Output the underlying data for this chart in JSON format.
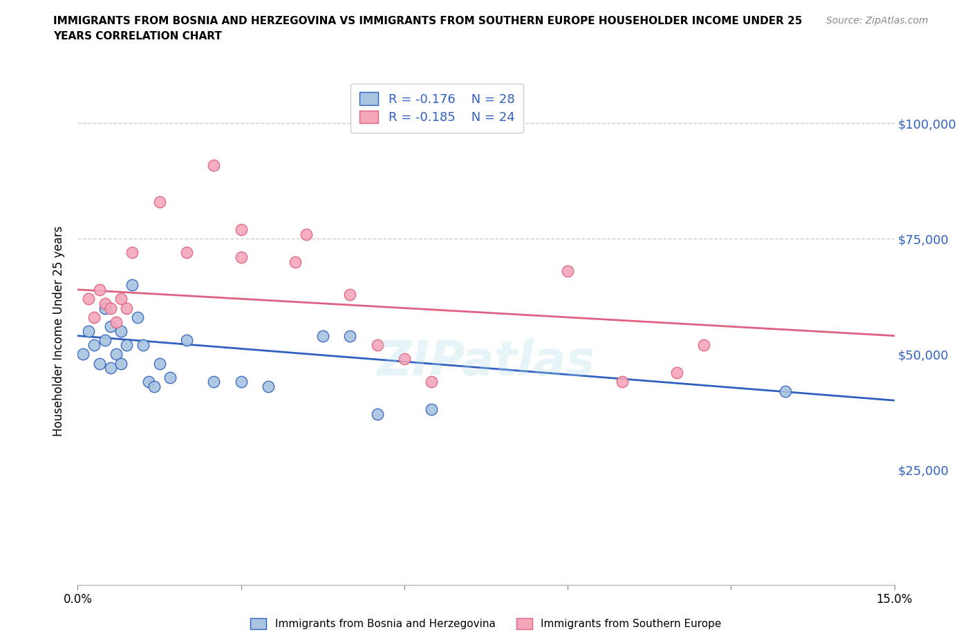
{
  "title": "IMMIGRANTS FROM BOSNIA AND HERZEGOVINA VS IMMIGRANTS FROM SOUTHERN EUROPE HOUSEHOLDER INCOME UNDER 25\nYEARS CORRELATION CHART",
  "source": "Source: ZipAtlas.com",
  "ylabel": "Householder Income Under 25 years",
  "xlim": [
    0.0,
    0.15
  ],
  "ylim": [
    0,
    110000
  ],
  "yticks": [
    0,
    25000,
    50000,
    75000,
    100000
  ],
  "ytick_labels": [
    "",
    "$25,000",
    "$50,000",
    "$75,000",
    "$100,000"
  ],
  "xticks": [
    0.0,
    0.03,
    0.06,
    0.09,
    0.12,
    0.15
  ],
  "xtick_labels": [
    "0.0%",
    "",
    "",
    "",
    "",
    "15.0%"
  ],
  "color_blue": "#a8c4e0",
  "color_pink": "#f4a7b9",
  "line_color_blue": "#3060c0",
  "line_color_pink": "#e06080",
  "grid_color": "#cccccc",
  "watermark": "ZIPatlas",
  "blue_points": [
    [
      0.001,
      50000
    ],
    [
      0.002,
      55000
    ],
    [
      0.003,
      52000
    ],
    [
      0.004,
      48000
    ],
    [
      0.005,
      60000
    ],
    [
      0.005,
      53000
    ],
    [
      0.006,
      56000
    ],
    [
      0.006,
      47000
    ],
    [
      0.007,
      50000
    ],
    [
      0.008,
      55000
    ],
    [
      0.008,
      48000
    ],
    [
      0.009,
      52000
    ],
    [
      0.01,
      65000
    ],
    [
      0.011,
      58000
    ],
    [
      0.012,
      52000
    ],
    [
      0.013,
      44000
    ],
    [
      0.014,
      43000
    ],
    [
      0.015,
      48000
    ],
    [
      0.017,
      45000
    ],
    [
      0.02,
      53000
    ],
    [
      0.025,
      44000
    ],
    [
      0.03,
      44000
    ],
    [
      0.035,
      43000
    ],
    [
      0.045,
      54000
    ],
    [
      0.05,
      54000
    ],
    [
      0.055,
      37000
    ],
    [
      0.065,
      38000
    ],
    [
      0.13,
      42000
    ]
  ],
  "pink_points": [
    [
      0.002,
      62000
    ],
    [
      0.003,
      58000
    ],
    [
      0.004,
      64000
    ],
    [
      0.005,
      61000
    ],
    [
      0.006,
      60000
    ],
    [
      0.007,
      57000
    ],
    [
      0.008,
      62000
    ],
    [
      0.009,
      60000
    ],
    [
      0.01,
      72000
    ],
    [
      0.015,
      83000
    ],
    [
      0.02,
      72000
    ],
    [
      0.025,
      91000
    ],
    [
      0.03,
      77000
    ],
    [
      0.03,
      71000
    ],
    [
      0.04,
      70000
    ],
    [
      0.042,
      76000
    ],
    [
      0.05,
      63000
    ],
    [
      0.055,
      52000
    ],
    [
      0.06,
      49000
    ],
    [
      0.065,
      44000
    ],
    [
      0.09,
      68000
    ],
    [
      0.1,
      44000
    ],
    [
      0.11,
      46000
    ],
    [
      0.115,
      52000
    ]
  ],
  "blue_line": [
    0.0,
    54000,
    0.15,
    40000
  ],
  "pink_line": [
    0.0,
    64000,
    0.15,
    54000
  ]
}
